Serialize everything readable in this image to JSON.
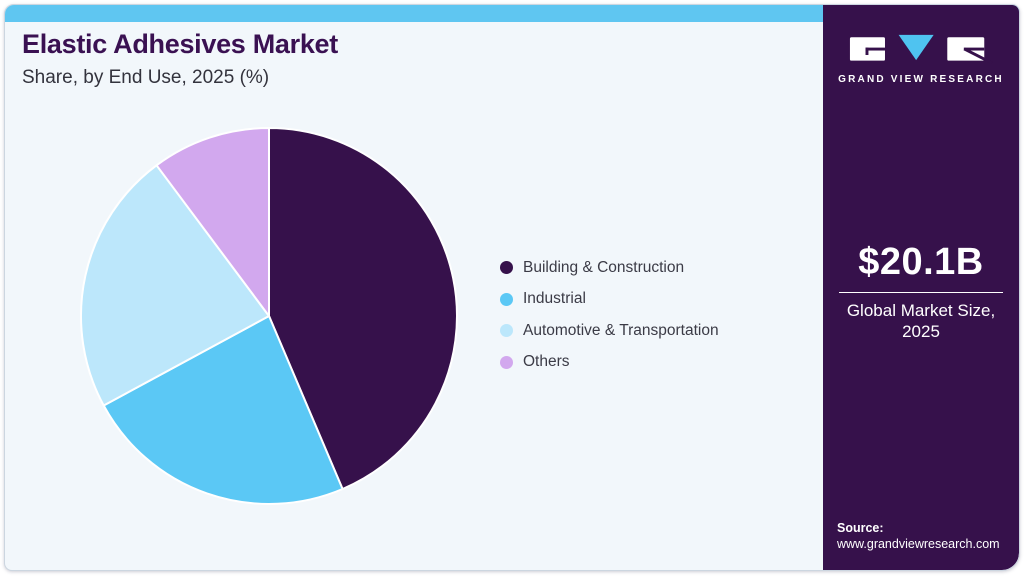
{
  "header": {
    "title": "Elastic Adhesives Market",
    "subtitle": "Share, by End Use, 2025 (%)"
  },
  "chart_data": {
    "type": "pie",
    "title": "Elastic Adhesives Market Share, by End Use, 2025 (%)",
    "categories": [
      "Building & Construction",
      "Industrial",
      "Automotive & Transportation",
      "Others"
    ],
    "values": [
      43.6,
      23.5,
      22.7,
      10.2
    ],
    "unit": "%",
    "colors": [
      "#36114B",
      "#5BC8F5",
      "#BCE7FB",
      "#D2A8EE"
    ],
    "start_angle_deg": 0,
    "direction": "clockwise",
    "legend_position": "right",
    "data_labels_shown": false
  },
  "sidebar": {
    "logo_text": "GRAND VIEW RESEARCH",
    "market_size_value": "$20.1B",
    "market_size_caption": "Global Market Size, 2025",
    "source_label": "Source:",
    "source_url": "www.grandviewresearch.com"
  },
  "colors": {
    "top_bar": "#5FC6F1",
    "card_background": "#F2F7FB",
    "sidebar_background": "#36114B",
    "title_text": "#3A1152",
    "body_text": "#33333D",
    "logo_triangle": "#4FC3F0",
    "slice_divider": "#FFFFFF"
  }
}
